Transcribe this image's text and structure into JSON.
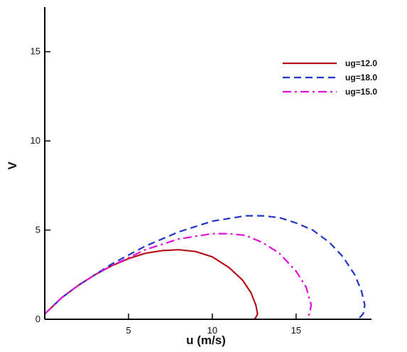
{
  "chart_data": {
    "type": "line",
    "title": "",
    "xlabel": "u (m/s)",
    "ylabel": "V",
    "xlim": [
      0,
      19.5
    ],
    "ylim": [
      0,
      17.5
    ],
    "x_ticks": [
      5,
      10,
      15
    ],
    "y_ticks": [
      0,
      5,
      10,
      15
    ],
    "grid": false,
    "legend_position": "top-right",
    "series": [
      {
        "name": "ug=12.0",
        "color": "#b5121b",
        "dash": "solid",
        "x": [
          0.0,
          1.0,
          2.0,
          3.0,
          4.0,
          5.0,
          6.0,
          7.0,
          8.0,
          9.0,
          10.0,
          11.0,
          11.8,
          12.3,
          12.6,
          12.7,
          12.6,
          12.5
        ],
        "y": [
          0.3,
          1.2,
          1.9,
          2.5,
          3.0,
          3.4,
          3.7,
          3.85,
          3.9,
          3.8,
          3.5,
          2.9,
          2.2,
          1.5,
          0.8,
          0.3,
          0.1,
          0.0
        ]
      },
      {
        "name": "ug=18.0",
        "color": "#2233cc",
        "dash": "dashed",
        "x": [
          0.0,
          1.0,
          2.0,
          3.0,
          4.0,
          6.0,
          8.0,
          10.0,
          12.0,
          13.0,
          14.0,
          15.0,
          16.0,
          17.0,
          17.8,
          18.5,
          18.9,
          19.1,
          19.0,
          18.7
        ],
        "y": [
          0.3,
          1.2,
          1.9,
          2.5,
          3.1,
          4.1,
          4.9,
          5.5,
          5.8,
          5.8,
          5.7,
          5.4,
          5.0,
          4.3,
          3.5,
          2.5,
          1.6,
          0.8,
          0.3,
          0.0
        ]
      },
      {
        "name": "ug=15.0",
        "color": "#e010d8",
        "dash": "dashdot",
        "x": [
          0.0,
          1.0,
          2.0,
          3.0,
          4.0,
          6.0,
          8.0,
          10.0,
          11.0,
          12.0,
          13.0,
          14.0,
          15.0,
          15.6,
          15.9,
          15.8,
          15.6
        ],
        "y": [
          0.3,
          1.2,
          1.9,
          2.5,
          3.0,
          3.9,
          4.5,
          4.8,
          4.8,
          4.7,
          4.3,
          3.7,
          2.7,
          1.8,
          0.8,
          0.3,
          0.0
        ]
      }
    ]
  }
}
